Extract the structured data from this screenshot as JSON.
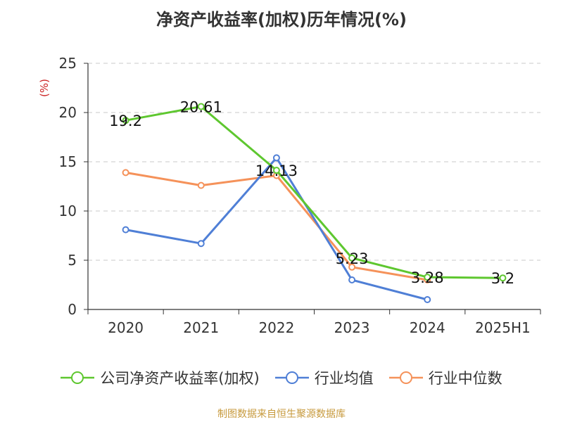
{
  "title": "净资产收益率(加权)历年情况(%)",
  "source": "制图数据来自恒生聚源数据库",
  "chart_data": {
    "type": "line",
    "title": "净资产收益率(加权)历年情况(%)",
    "ylabel": "(%)",
    "xlabel": "",
    "categories": [
      "2020",
      "2021",
      "2022",
      "2023",
      "2024",
      "2025H1"
    ],
    "ylim": [
      0,
      25
    ],
    "yticks": [
      "0",
      "5",
      "10",
      "15",
      "20",
      "25"
    ],
    "grid": "horizontal dashed",
    "legend_position": "bottom",
    "series": [
      {
        "name": "公司净资产收益率(加权)",
        "color": "#5ec72f",
        "values": [
          19.2,
          20.61,
          14.13,
          5.23,
          3.28,
          3.2
        ],
        "labels": [
          "19.2",
          "20.61",
          "14.13",
          "5.23",
          "3.28",
          "3.2"
        ]
      },
      {
        "name": "行业均值",
        "color": "#4f7fd6",
        "values": [
          8.1,
          6.7,
          15.4,
          3.0,
          1.0,
          null
        ]
      },
      {
        "name": "行业中位数",
        "color": "#f5925a",
        "values": [
          13.9,
          12.6,
          13.6,
          4.3,
          3.0,
          null
        ]
      }
    ]
  }
}
